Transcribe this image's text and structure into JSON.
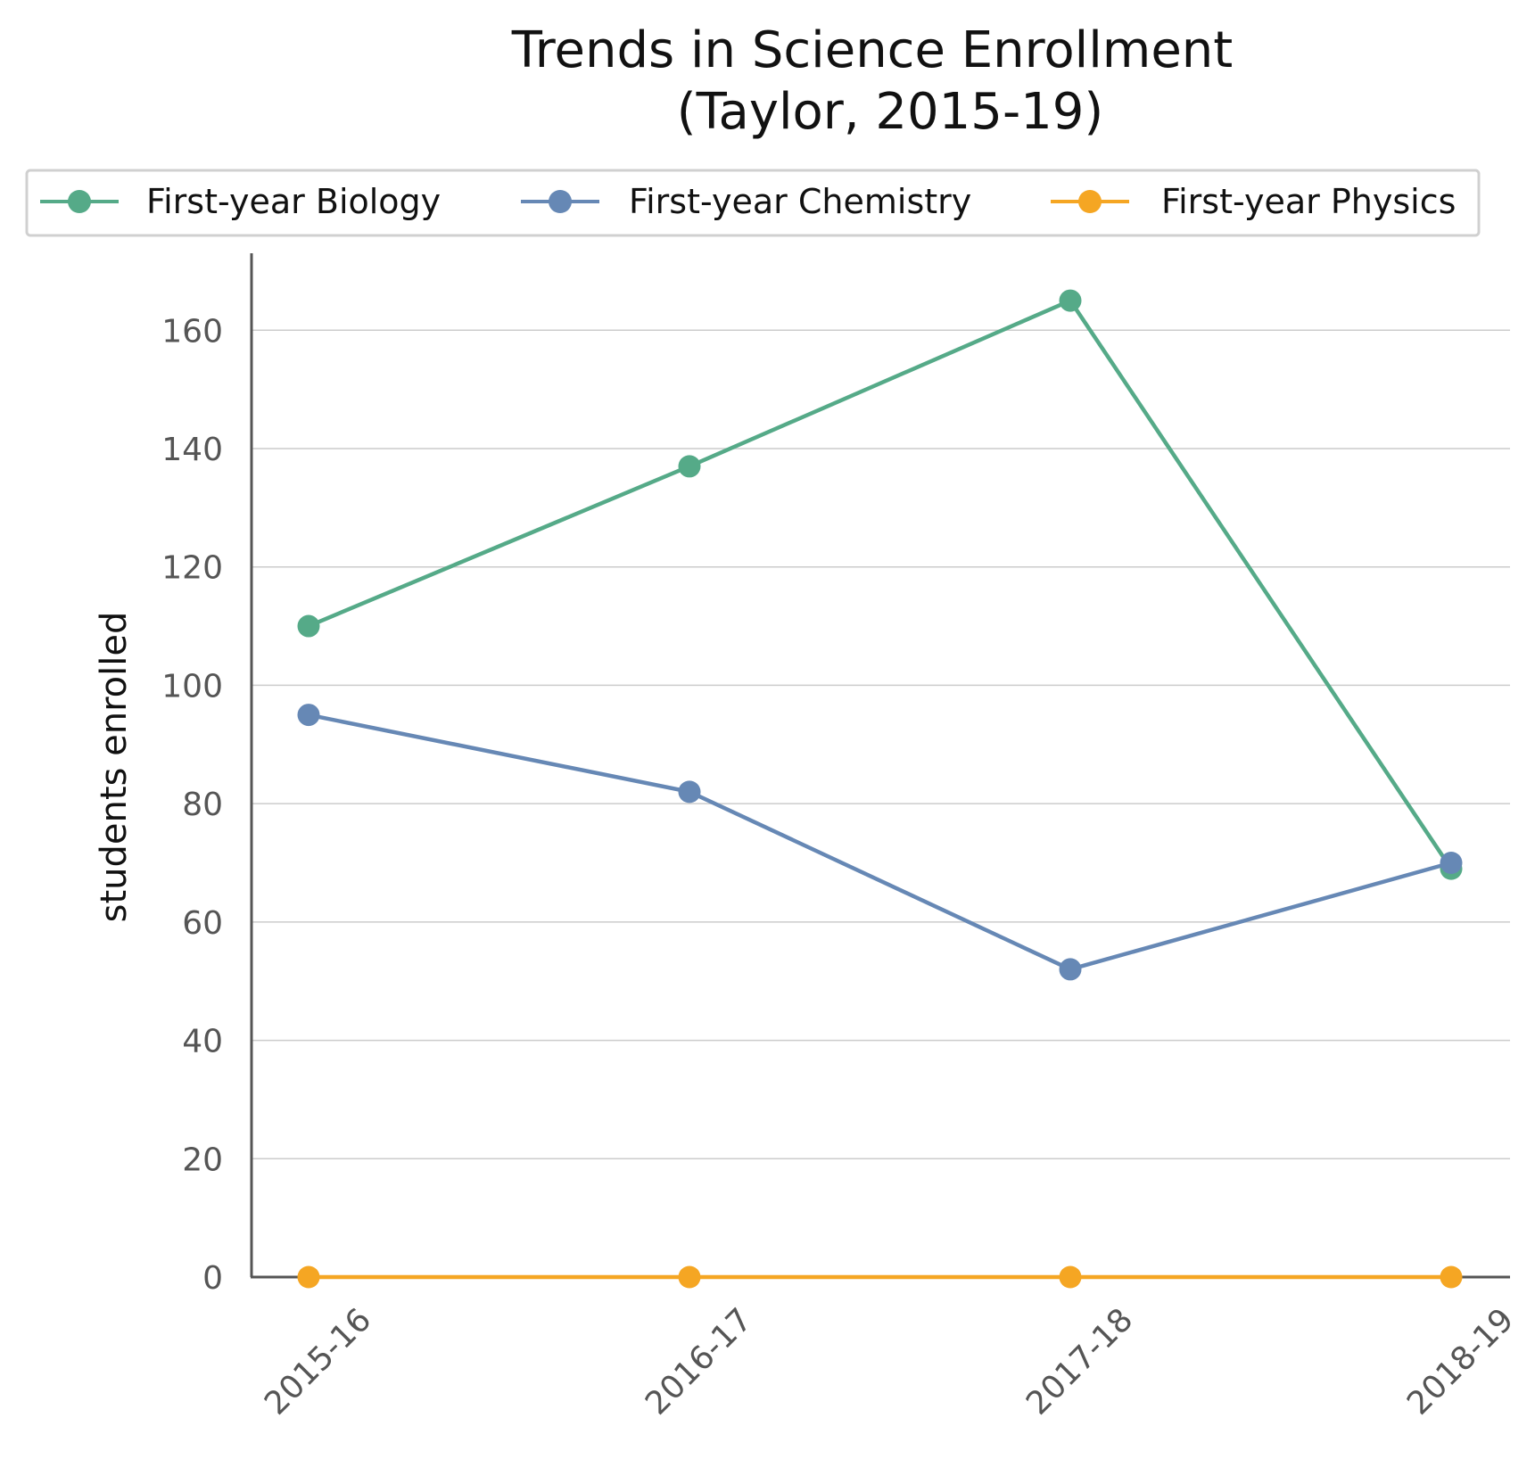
{
  "chart_data": {
    "type": "line",
    "title": [
      "Trends in Science Enrollment",
      "(Taylor, 2015-19)"
    ],
    "xlabel": "",
    "ylabel": "students enrolled",
    "categories": [
      "2015-16",
      "2016-17",
      "2017-18",
      "2018-19"
    ],
    "ylim": [
      0,
      173
    ],
    "yticks": [
      0,
      20,
      40,
      60,
      80,
      100,
      120,
      140,
      160
    ],
    "grid": "horizontal",
    "legend_position": "top",
    "series": [
      {
        "name": "First-year Biology",
        "color": "#55aa88",
        "values": [
          110,
          137,
          165,
          69
        ]
      },
      {
        "name": "First-year Chemistry",
        "color": "#6688b5",
        "values": [
          95,
          82,
          52,
          70
        ]
      },
      {
        "name": "First-year Physics",
        "color": "#f5a623",
        "values": [
          0,
          0,
          0,
          0
        ]
      }
    ]
  }
}
